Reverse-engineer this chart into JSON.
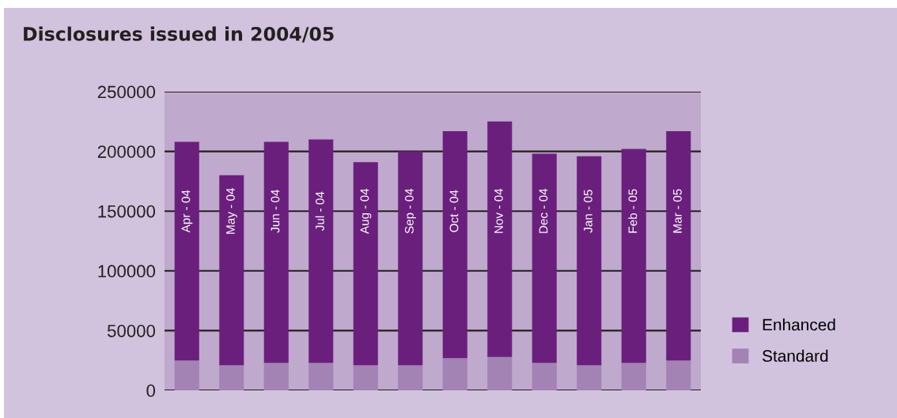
{
  "chart_data": {
    "type": "bar",
    "title": "Disclosures issued in 2004/05",
    "stacked": true,
    "categories": [
      "Apr - 04",
      "May - 04",
      "Jun - 04",
      "Jul - 04",
      "Aug - 04",
      "Sep - 04",
      "Oct - 04",
      "Nov - 04",
      "Dec - 04",
      "Jan - 05",
      "Feb - 05",
      "Mar - 05"
    ],
    "series": [
      {
        "name": "Standard",
        "color": "#a382b4",
        "values": [
          25000,
          21000,
          23000,
          23000,
          21000,
          21000,
          27000,
          28000,
          23000,
          21000,
          23000,
          25000
        ]
      },
      {
        "name": "Enhanced",
        "color": "#6a1f7d",
        "values": [
          183000,
          159000,
          185000,
          187000,
          170000,
          179000,
          190000,
          197000,
          175000,
          175000,
          179000,
          192000
        ]
      }
    ],
    "ylim": [
      0,
      250000
    ],
    "yticks": [
      0,
      50000,
      100000,
      150000,
      200000,
      250000
    ],
    "grid": "y",
    "legend": "bottom right"
  }
}
